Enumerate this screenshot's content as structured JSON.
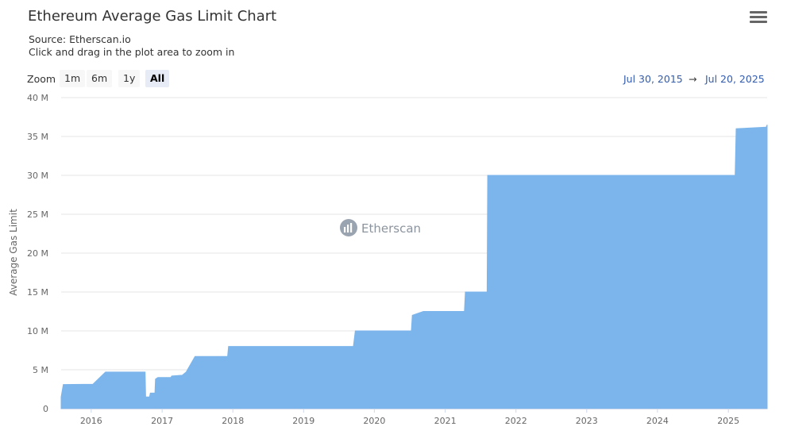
{
  "header": {
    "title": "Ethereum Average Gas Limit Chart",
    "source": "Source: Etherscan.io",
    "instruction": "Click and drag in the plot area to zoom in",
    "menu_icon": "hamburger-menu-icon"
  },
  "zoom": {
    "label": "Zoom",
    "buttons": [
      "1m",
      "6m",
      "1y",
      "All"
    ],
    "selected": "All"
  },
  "range": {
    "from": "Jul 30, 2015",
    "arrow": "→",
    "to": "Jul 20, 2025"
  },
  "watermark": {
    "text": "Etherscan",
    "logo_icon": "etherscan-logo-icon"
  },
  "colors": {
    "area": "#7cb5ec",
    "grid": "#e6e6e6",
    "range_text": "#335cad"
  },
  "chart_data": {
    "type": "area",
    "title": "Ethereum Average Gas Limit Chart",
    "ylabel": "Average Gas Limit",
    "xlabel": "",
    "ylim": [
      0,
      40000000
    ],
    "xlim": [
      "2015-07-30",
      "2025-07-20"
    ],
    "yticks": [
      {
        "value": 0,
        "label": "0"
      },
      {
        "value": 5000000,
        "label": "5 M"
      },
      {
        "value": 10000000,
        "label": "10 M"
      },
      {
        "value": 15000000,
        "label": "15 M"
      },
      {
        "value": 20000000,
        "label": "20 M"
      },
      {
        "value": 25000000,
        "label": "25 M"
      },
      {
        "value": 30000000,
        "label": "30 M"
      },
      {
        "value": 35000000,
        "label": "35 M"
      },
      {
        "value": 40000000,
        "label": "40 M"
      }
    ],
    "xticks": [
      {
        "date": "2016-01-01",
        "label": "2016"
      },
      {
        "date": "2017-01-01",
        "label": "2017"
      },
      {
        "date": "2018-01-01",
        "label": "2018"
      },
      {
        "date": "2019-01-01",
        "label": "2019"
      },
      {
        "date": "2020-01-01",
        "label": "2020"
      },
      {
        "date": "2021-01-01",
        "label": "2021"
      },
      {
        "date": "2022-01-01",
        "label": "2022"
      },
      {
        "date": "2023-01-01",
        "label": "2023"
      },
      {
        "date": "2024-01-01",
        "label": "2024"
      },
      {
        "date": "2025-01-01",
        "label": "2025"
      }
    ],
    "grid": true,
    "legend": "none",
    "series": [
      {
        "points": [
          [
            "2015-07-30",
            1500000
          ],
          [
            "2015-08-10",
            3100000
          ],
          [
            "2016-01-10",
            3140000
          ],
          [
            "2016-03-15",
            4700000
          ],
          [
            "2016-07-25",
            4700000
          ],
          [
            "2016-10-05",
            4700000
          ],
          [
            "2016-10-08",
            1500000
          ],
          [
            "2016-10-28",
            1500000
          ],
          [
            "2016-11-01",
            2000000
          ],
          [
            "2016-11-25",
            2000000
          ],
          [
            "2016-11-28",
            3800000
          ],
          [
            "2016-12-10",
            4000000
          ],
          [
            "2017-02-15",
            4000000
          ],
          [
            "2017-02-20",
            4200000
          ],
          [
            "2017-04-15",
            4300000
          ],
          [
            "2017-05-05",
            4700000
          ],
          [
            "2017-06-20",
            6700000
          ],
          [
            "2017-12-05",
            6700000
          ],
          [
            "2017-12-10",
            8000000
          ],
          [
            "2019-09-15",
            8000000
          ],
          [
            "2019-09-25",
            10000000
          ],
          [
            "2020-07-10",
            10000000
          ],
          [
            "2020-07-15",
            12000000
          ],
          [
            "2020-09-10",
            12500000
          ],
          [
            "2021-04-10",
            12500000
          ],
          [
            "2021-04-15",
            15000000
          ],
          [
            "2021-08-05",
            15000000
          ],
          [
            "2021-08-08",
            30000000
          ],
          [
            "2025-02-05",
            30000000
          ],
          [
            "2025-02-10",
            36000000
          ],
          [
            "2025-07-15",
            36200000
          ],
          [
            "2025-07-20",
            36500000
          ]
        ]
      }
    ]
  }
}
